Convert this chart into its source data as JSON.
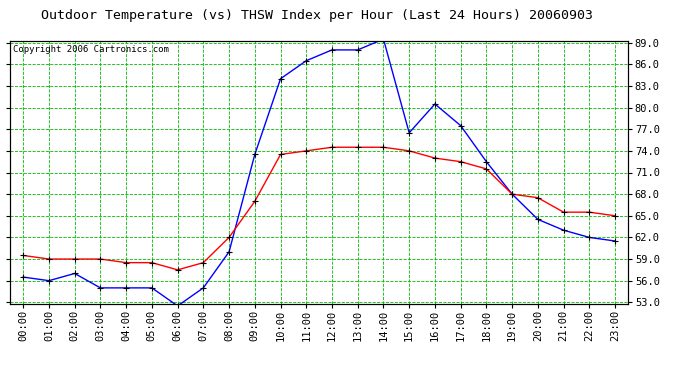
{
  "title": "Outdoor Temperature (vs) THSW Index per Hour (Last 24 Hours) 20060903",
  "copyright": "Copyright 2006 Cartronics.com",
  "hours": [
    "00:00",
    "01:00",
    "02:00",
    "03:00",
    "04:00",
    "05:00",
    "06:00",
    "07:00",
    "08:00",
    "09:00",
    "10:00",
    "11:00",
    "12:00",
    "13:00",
    "14:00",
    "15:00",
    "16:00",
    "17:00",
    "18:00",
    "19:00",
    "20:00",
    "21:00",
    "22:00",
    "23:00"
  ],
  "temp": [
    59.5,
    59.0,
    59.0,
    59.0,
    58.5,
    58.5,
    57.5,
    58.5,
    62.0,
    67.0,
    73.5,
    74.0,
    74.5,
    74.5,
    74.5,
    74.0,
    73.0,
    72.5,
    71.5,
    68.0,
    67.5,
    65.5,
    65.5,
    65.0
  ],
  "thsw": [
    56.5,
    56.0,
    57.0,
    55.0,
    55.0,
    55.0,
    52.5,
    55.0,
    60.0,
    73.5,
    84.0,
    86.5,
    88.0,
    88.0,
    89.5,
    76.5,
    80.5,
    77.5,
    72.5,
    68.0,
    64.5,
    63.0,
    62.0,
    61.5
  ],
  "ylim_min": 53.0,
  "ylim_max": 89.0,
  "yticks": [
    53.0,
    56.0,
    59.0,
    62.0,
    65.0,
    68.0,
    71.0,
    74.0,
    77.0,
    80.0,
    83.0,
    86.0,
    89.0
  ],
  "temp_color": "#ff0000",
  "thsw_color": "#0000ff",
  "bg_color": "#ffffff",
  "grid_color": "#00bb00",
  "marker_color": "#000000",
  "title_fontsize": 9.5,
  "tick_fontsize": 7.5,
  "copyright_fontsize": 6.5
}
